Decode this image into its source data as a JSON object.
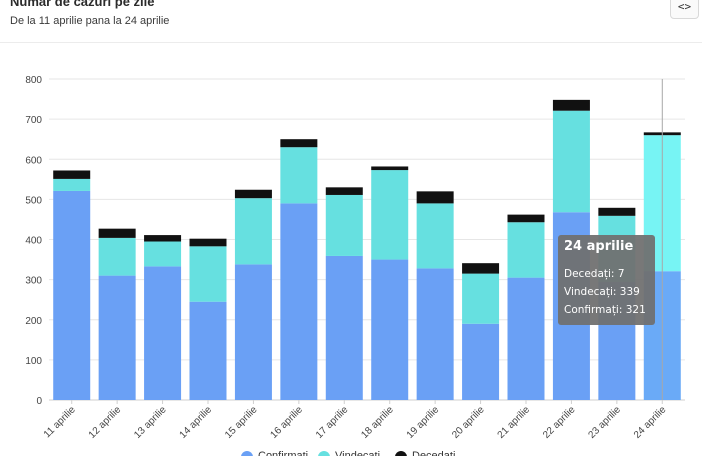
{
  "header": {
    "title": "Număr de cazuri pe zile",
    "subtitle": "De la 11 aprilie pana la 24 aprilie",
    "embed_label": "<>"
  },
  "tooltip": {
    "title": "24 aprilie",
    "rows": [
      {
        "label": "Decedați",
        "value": 7
      },
      {
        "label": "Vindecați",
        "value": 339
      },
      {
        "label": "Confirmați",
        "value": 321
      }
    ]
  },
  "chart_data": {
    "type": "bar",
    "stacked": true,
    "categories": [
      "11 aprilie",
      "12 aprilie",
      "13 aprilie",
      "14 aprilie",
      "15 aprilie",
      "16 aprilie",
      "17 aprilie",
      "18 aprilie",
      "19 aprilie",
      "20 aprilie",
      "21 aprilie",
      "22 aprilie",
      "23 aprilie",
      "24 aprilie"
    ],
    "series": [
      {
        "name": "Confirmați",
        "color": "#6aa0f5",
        "values": [
          521,
          310,
          333,
          245,
          338,
          490,
          359,
          350,
          328,
          190,
          305,
          468,
          294,
          321
        ]
      },
      {
        "name": "Vindecați",
        "color": "#66e0e0",
        "values": [
          30,
          94,
          62,
          138,
          165,
          140,
          152,
          223,
          162,
          125,
          138,
          253,
          165,
          339
        ]
      },
      {
        "name": "Decedați",
        "color": "#111111",
        "values": [
          21,
          23,
          16,
          19,
          21,
          20,
          19,
          9,
          30,
          26,
          19,
          27,
          20,
          7
        ]
      }
    ],
    "highlight_index": 13,
    "highlight_colors": {
      "Confirmați": "#6aaaf7",
      "Vindecați": "#77f4f4"
    },
    "ylim": [
      0,
      800
    ],
    "yticks": [
      0,
      100,
      200,
      300,
      400,
      500,
      600,
      700,
      800
    ],
    "grid": true,
    "legend_position": "bottom"
  }
}
